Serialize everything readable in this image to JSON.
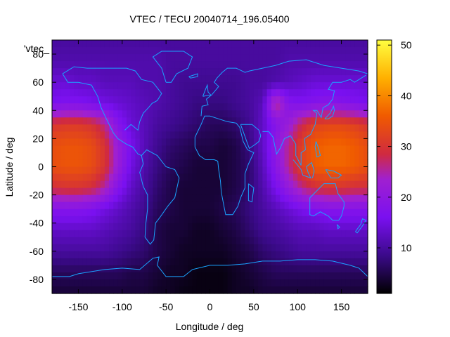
{
  "chart_data": {
    "type": "heatmap",
    "title": "VTEC / TECU 20040714_196.05400",
    "xlabel": "Longitude / deg",
    "ylabel": "Latitude / deg",
    "legend_label": "'vtec_",
    "xlim": [
      -180,
      180
    ],
    "ylim": [
      -90,
      90
    ],
    "xticks": [
      -150,
      -100,
      -50,
      0,
      50,
      100,
      150
    ],
    "yticks": [
      -80,
      -60,
      -40,
      -20,
      0,
      20,
      40,
      60,
      80
    ],
    "colorbar": {
      "range": [
        1,
        51
      ],
      "ticks": [
        10,
        20,
        30,
        40,
        50
      ]
    },
    "grid": false,
    "overlay": "world coastlines",
    "longitudes": [
      -180,
      -165,
      -150,
      -135,
      -120,
      -105,
      -90,
      -75,
      -60,
      -45,
      -30,
      -15,
      0,
      15,
      30,
      45,
      60,
      75,
      90,
      105,
      120,
      135,
      150,
      165,
      180
    ],
    "latitudes": [
      90,
      75,
      60,
      45,
      30,
      15,
      0,
      -15,
      -30,
      -45,
      -60,
      -75,
      -90
    ],
    "values": [
      [
        10,
        10,
        10,
        10,
        10,
        10,
        10,
        10,
        10,
        10,
        10,
        10,
        10,
        10,
        10,
        10,
        10,
        10,
        10,
        10,
        10,
        10,
        10,
        10,
        10
      ],
      [
        11,
        11,
        11,
        11,
        11,
        11,
        11,
        11,
        11,
        10,
        10,
        10,
        10,
        10,
        10,
        10,
        10,
        10,
        11,
        11,
        11,
        11,
        11,
        11,
        11
      ],
      [
        14,
        14,
        13,
        13,
        12,
        12,
        12,
        11,
        11,
        10,
        9,
        9,
        9,
        9,
        9,
        10,
        10,
        11,
        12,
        13,
        14,
        14,
        14,
        14,
        14
      ],
      [
        16,
        17,
        17,
        16,
        15,
        14,
        13,
        12,
        11,
        10,
        9,
        8,
        8,
        8,
        9,
        10,
        12,
        27,
        18,
        17,
        18,
        19,
        18,
        17,
        16
      ],
      [
        30,
        31,
        31,
        30,
        26,
        18,
        14,
        12,
        10,
        9,
        8,
        7,
        6,
        6,
        7,
        9,
        13,
        18,
        22,
        28,
        32,
        33,
        33,
        32,
        30
      ],
      [
        34,
        35,
        35,
        34,
        30,
        22,
        16,
        12,
        9,
        7,
        6,
        5,
        5,
        4,
        5,
        8,
        13,
        20,
        26,
        32,
        36,
        37,
        37,
        36,
        34
      ],
      [
        34,
        35,
        35,
        34,
        30,
        22,
        15,
        11,
        8,
        6,
        5,
        4,
        4,
        4,
        5,
        7,
        12,
        19,
        26,
        32,
        36,
        37,
        37,
        36,
        34
      ],
      [
        29,
        30,
        30,
        29,
        25,
        18,
        13,
        10,
        7,
        5,
        4,
        4,
        4,
        4,
        5,
        7,
        11,
        16,
        21,
        26,
        29,
        30,
        30,
        29,
        29
      ],
      [
        18,
        18,
        18,
        17,
        15,
        13,
        11,
        9,
        6,
        5,
        4,
        4,
        4,
        5,
        6,
        8,
        10,
        12,
        14,
        16,
        17,
        18,
        18,
        18,
        18
      ],
      [
        13,
        13,
        13,
        13,
        12,
        11,
        10,
        8,
        5,
        4,
        4,
        3,
        3,
        4,
        5,
        7,
        9,
        10,
        11,
        12,
        12,
        13,
        13,
        13,
        13
      ],
      [
        10,
        10,
        10,
        10,
        10,
        9,
        8,
        7,
        5,
        4,
        3,
        3,
        3,
        3,
        4,
        5,
        7,
        8,
        9,
        10,
        10,
        10,
        10,
        10,
        10
      ],
      [
        6,
        6,
        6,
        6,
        6,
        6,
        5,
        5,
        4,
        3,
        3,
        2,
        2,
        2,
        3,
        4,
        5,
        6,
        6,
        6,
        6,
        6,
        6,
        6,
        6
      ],
      [
        4,
        4,
        4,
        4,
        4,
        4,
        4,
        4,
        3,
        3,
        2,
        2,
        2,
        2,
        3,
        3,
        4,
        4,
        4,
        4,
        4,
        4,
        4,
        4,
        4
      ]
    ]
  }
}
